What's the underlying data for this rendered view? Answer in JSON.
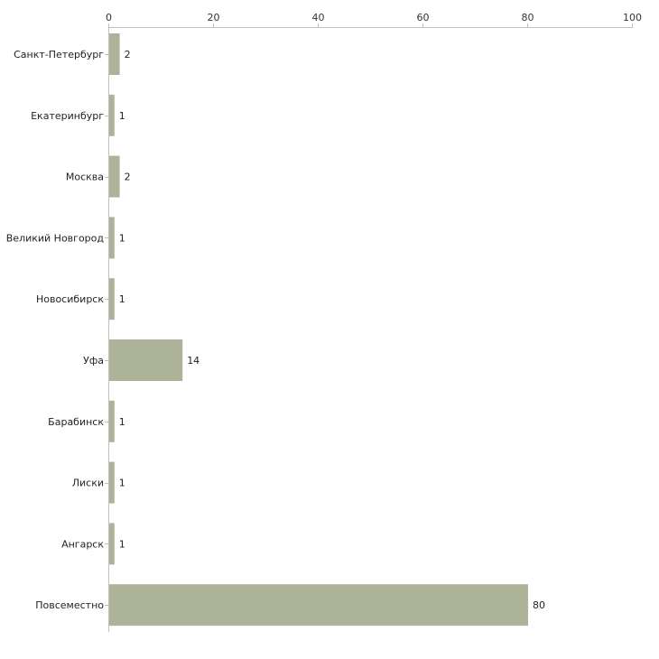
{
  "chart_data": {
    "type": "bar",
    "orientation": "horizontal",
    "title": "",
    "xlabel": "",
    "ylabel": "",
    "xlim": [
      0,
      100
    ],
    "x_ticks": [
      0,
      20,
      40,
      60,
      80,
      100
    ],
    "x_axis_position": "top",
    "grid": false,
    "legend": "none",
    "bar_color": "#adb398",
    "axis_color": "#c0c0c0",
    "categories": [
      "Санкт-Петербург",
      "Екатеринбург",
      "Москва",
      "Великий Новгород",
      "Новосибирск",
      "Уфа",
      "Барабинск",
      "Лиски",
      "Ангарск",
      "Повсеместно"
    ],
    "values": [
      2,
      1,
      2,
      1,
      1,
      14,
      1,
      1,
      1,
      80
    ]
  }
}
